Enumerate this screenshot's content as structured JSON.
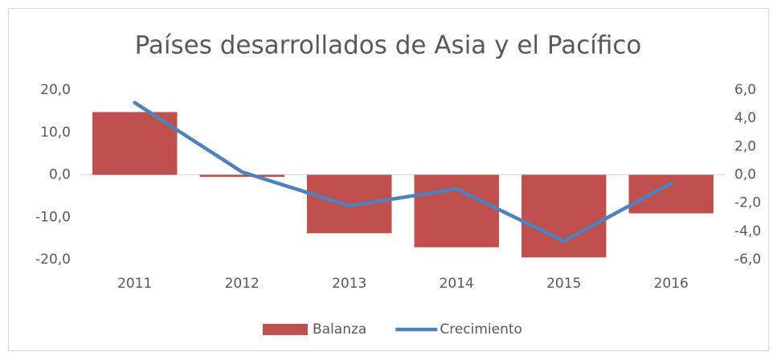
{
  "chart_data": {
    "type": "bar_line",
    "title": "Países desarrollados de Asia y el Pacífico",
    "categories": [
      "2011",
      "2012",
      "2013",
      "2014",
      "2015",
      "2016"
    ],
    "series": [
      {
        "name": "Balanza",
        "color": "#c0504d",
        "type": "bar",
        "values": [
          14.8,
          -0.5,
          -13.8,
          -17.1,
          -19.5,
          -9.1
        ]
      },
      {
        "name": "Crecimiento",
        "color": "#4f81bd",
        "type": "line",
        "axis": "y2",
        "values": [
          5.1,
          0.2,
          -2.2,
          -1.0,
          -4.7,
          -0.6
        ]
      }
    ],
    "ylim": [
      -20,
      20
    ],
    "yticks": [
      {
        "value": -20,
        "label": "-20,0"
      },
      {
        "value": -10,
        "label": "-10,0"
      },
      {
        "value": 0,
        "label": "0,0"
      },
      {
        "value": 10,
        "label": "10,0"
      },
      {
        "value": 20,
        "label": "20,0"
      }
    ],
    "y2lim": [
      -6,
      6
    ],
    "y2ticks": [
      {
        "value": -6,
        "label": "-6,0"
      },
      {
        "value": -4,
        "label": "-4,0"
      },
      {
        "value": -2,
        "label": "-2,0"
      },
      {
        "value": 0,
        "label": "0,0"
      },
      {
        "value": 2,
        "label": "2,0"
      },
      {
        "value": 4,
        "label": "4,0"
      },
      {
        "value": 6,
        "label": "6,0"
      }
    ],
    "grid": false,
    "legend": "bottom"
  }
}
